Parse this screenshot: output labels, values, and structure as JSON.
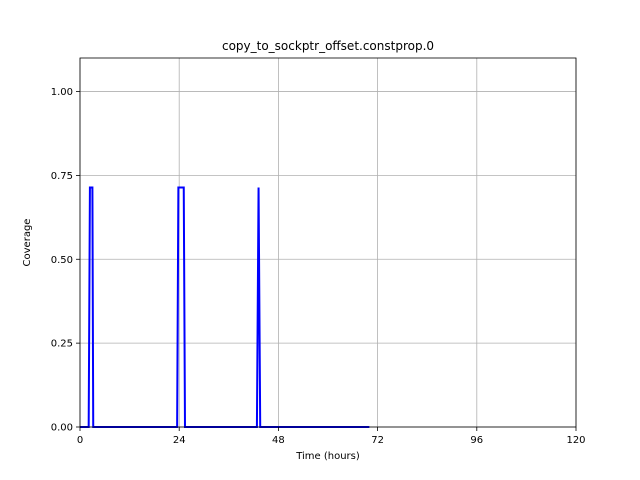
{
  "chart_data": {
    "type": "line",
    "title": "copy_to_sockptr_offset.constprop.0",
    "xlabel": "Time (hours)",
    "ylabel": "Coverage",
    "xlim": [
      0,
      120
    ],
    "ylim": [
      0,
      1.1
    ],
    "xticks": [
      0,
      24,
      48,
      72,
      96,
      120
    ],
    "xtick_labels": [
      "0",
      "24",
      "48",
      "72",
      "96",
      "120"
    ],
    "yticks": [
      0,
      0.25,
      0.5,
      0.75,
      1.0
    ],
    "ytick_labels": [
      "0.00",
      "0.25",
      "0.50",
      "0.75",
      "1.00"
    ],
    "grid": true,
    "series": [
      {
        "color": "#0000ff",
        "x": [
          0,
          2.1,
          2.4,
          3.0,
          3.2,
          23.5,
          23.8,
          25.1,
          25.4,
          42.8,
          43.2,
          43.6,
          70
        ],
        "y": [
          0,
          0,
          0.714,
          0.714,
          0,
          0,
          0.714,
          0.714,
          0,
          0,
          0.714,
          0,
          0
        ]
      }
    ]
  }
}
